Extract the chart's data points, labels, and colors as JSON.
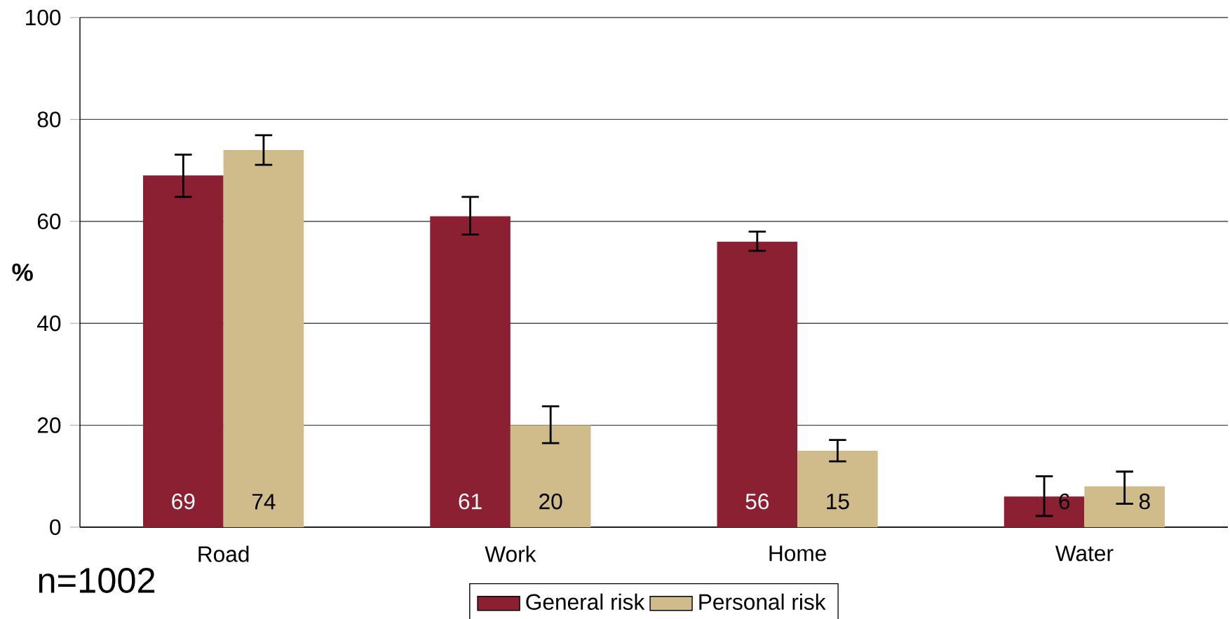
{
  "chart_data": {
    "type": "bar",
    "ylabel": "%",
    "categories": [
      "Road",
      "Work",
      "Home",
      "Water"
    ],
    "series": [
      {
        "name": "General risk",
        "color": "#8b2033",
        "values": [
          69,
          61,
          56,
          6
        ],
        "errors": [
          [
            64.8,
            73.1
          ],
          [
            57.4,
            64.8
          ],
          [
            54.2,
            58.0
          ],
          [
            2.2,
            10.0
          ]
        ]
      },
      {
        "name": "Personal risk",
        "color": "#cfbc8a",
        "values": [
          74,
          20,
          15,
          8
        ],
        "errors": [
          [
            71.1,
            76.9
          ],
          [
            16.5,
            23.7
          ],
          [
            12.9,
            17.1
          ],
          [
            4.6,
            10.9
          ]
        ]
      }
    ],
    "ylim": [
      0,
      100
    ],
    "yticks": [
      0,
      20,
      40,
      60,
      80,
      100
    ],
    "grid": "y",
    "legend": "bottom",
    "data_labels": true,
    "annotations": [
      "n=1002"
    ]
  }
}
